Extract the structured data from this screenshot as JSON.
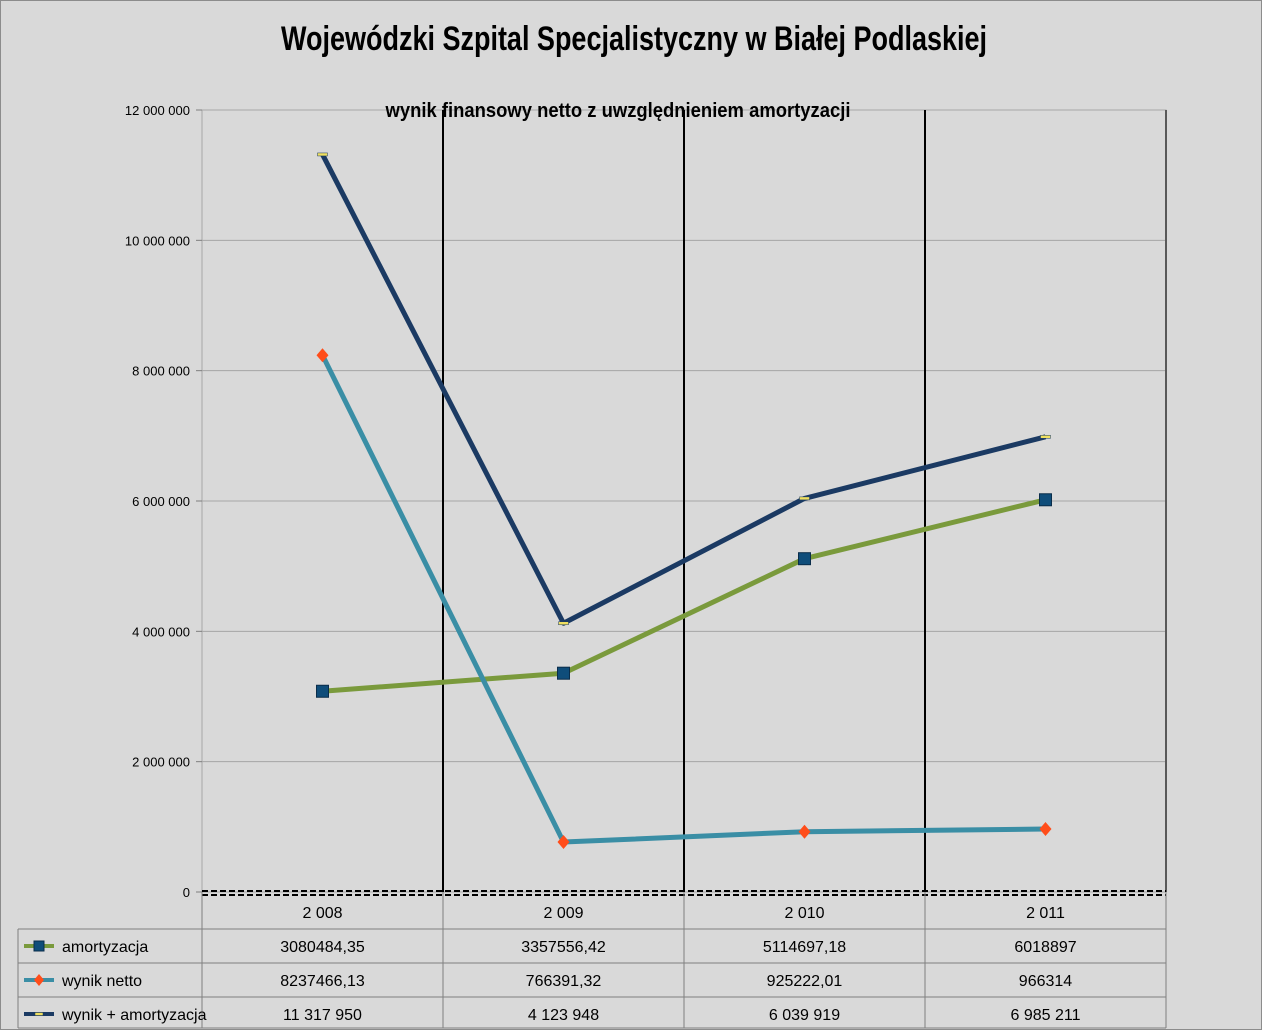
{
  "chart_data": {
    "type": "line",
    "title": "Wojewódzki Szpital Specjalistyczny w Białej Podlaskiej",
    "subtitle": "wynik finansowy netto z uwzględnieniem amortyzacji",
    "categories": [
      "2 008",
      "2 009",
      "2 010",
      "2 011"
    ],
    "ylim": [
      0,
      12000000
    ],
    "yticks": [
      0,
      2000000,
      4000000,
      6000000,
      8000000,
      10000000,
      12000000
    ],
    "ytick_labels": [
      "0",
      "2 000 000",
      "4 000 000",
      "6 000 000",
      "8 000 000",
      "10 000 000",
      "12 000 000"
    ],
    "grid": true,
    "legend_placement": "data-table-bottom",
    "series": [
      {
        "name": "amortyzacja",
        "values": [
          3080484.35,
          3357556.42,
          5114697.18,
          6018897
        ],
        "labels": [
          "3080484,35",
          "3357556,42",
          "5114697,18",
          "6018897"
        ],
        "color": "#7a9a3c",
        "marker": "square",
        "marker_color": "#0f4d7a"
      },
      {
        "name": "wynik netto",
        "values": [
          8237466.13,
          766391.32,
          925222.01,
          966314
        ],
        "labels": [
          "8237466,13",
          "766391,32",
          "925222,01",
          "966314"
        ],
        "color": "#3a8ea5",
        "marker": "diamond",
        "marker_color": "#ff4d1a"
      },
      {
        "name": "wynik + amortyzacja",
        "values": [
          11317950,
          4123948,
          6039919,
          6985211
        ],
        "labels": [
          "11 317 950",
          "4 123 948",
          "6 039 919",
          "6 985 211"
        ],
        "color": "#1b3a63",
        "marker": "dash",
        "marker_color": "#f0e060"
      }
    ]
  }
}
